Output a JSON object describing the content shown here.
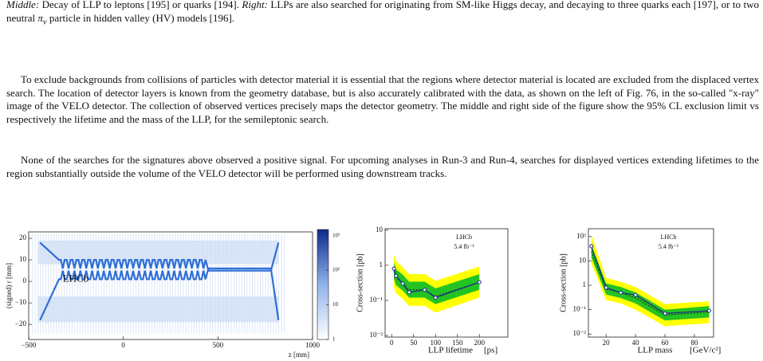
{
  "document": {
    "caption": [
      {
        "text": "Middle:",
        "italic": true
      },
      {
        "text": " Decay of LLP to leptons [195] or quarks [194]. ",
        "italic": false
      },
      {
        "text": "Right:",
        "italic": true
      },
      {
        "text": " LLPs are also searched for originating from SM-like Higgs decay, and decaying to three quarks each [197], or to two neutral ",
        "italic": false
      },
      {
        "text": "π",
        "italic": true
      },
      {
        "text": "v",
        "italic": true,
        "sub": true
      },
      {
        "text": " particle in hidden valley (HV) models [196].",
        "italic": false
      }
    ],
    "paragraphs": [
      "To exclude backgrounds from collisions of particles with detector material it is essential that the regions where detector material is located are excluded from the displaced vertex search. The location of detector layers is known from the geometry database, but is also accurately calibrated with the data, as shown on the left of Fig. 76, in the so-called \"x-ray\" image of the VELO detector. The collection of observed vertices precisely maps the detector geometry. The middle and right side of the figure show the 95% CL exclusion limit vs respectively the lifetime and the mass of the LLP, for the semileptonic search.",
      "None of the searches for the signatures above observed a positive signal. For upcoming analyses in Run-3 and Run-4, searches for displayed vertices extending lifetimes to the region substantially outside the volume of the VELO detector will be performed using downstream tracks."
    ]
  },
  "chart_data": [
    {
      "type": "heatmap",
      "annotation": "LHCb",
      "xlabel": "z [mm]",
      "ylabel": "(signed) r [mm]",
      "xlim": [
        -500,
        1000
      ],
      "ylim": [
        -27,
        23
      ],
      "xticks": [
        {
          "value": -500,
          "label": "−500"
        },
        0,
        500,
        1000
      ],
      "yticks": [
        20,
        10,
        0,
        {
          "value": -10,
          "label": "−10"
        },
        {
          "value": -20,
          "label": "−20"
        }
      ],
      "color": "#2f6fd6",
      "colorbar": {
        "log": true,
        "lim": [
          1,
          1500
        ],
        "ticks": [
          {
            "value": 1000,
            "label": "10³"
          },
          {
            "value": 100,
            "label": "10²"
          },
          10,
          1
        ]
      }
    },
    {
      "type": "limit",
      "annotation": [
        "LHCb",
        "5.4 fb⁻¹"
      ],
      "xlabel": "LLP lifetime",
      "xunit": "[ps]",
      "ylabel": "Cross-section [pb]",
      "log_y": true,
      "xlim": [
        -15,
        265
      ],
      "ylim": [
        0.009,
        11
      ],
      "xticks": [
        0,
        50,
        100,
        150,
        200
      ],
      "yticks": [
        10,
        1,
        {
          "value": 0.1,
          "label": "10⁻¹"
        },
        {
          "value": 0.01,
          "label": "10⁻²"
        }
      ],
      "x": [
        5,
        10,
        25,
        40,
        75,
        100,
        200
      ],
      "observed": {
        "values": [
          0.8,
          0.5,
          0.3,
          0.17,
          0.2,
          0.12,
          0.33
        ],
        "color": "#1c2f8a"
      },
      "expected": {
        "values": [
          0.7,
          0.45,
          0.32,
          0.2,
          0.2,
          0.13,
          0.33
        ],
        "color": "#222222"
      },
      "band_1sigma": {
        "low": [
          0.42,
          0.27,
          0.19,
          0.12,
          0.12,
          0.078,
          0.2
        ],
        "high": [
          1.2,
          0.77,
          0.54,
          0.34,
          0.34,
          0.22,
          0.56
        ],
        "color": "#22c322"
      },
      "band_2sigma": {
        "low": [
          0.25,
          0.16,
          0.11,
          0.07,
          0.07,
          0.045,
          0.12
        ],
        "high": [
          2.0,
          1.3,
          0.9,
          0.56,
          0.56,
          0.36,
          0.92
        ],
        "color": "#ffff00"
      }
    },
    {
      "type": "limit",
      "annotation": [
        "LHCb",
        "5.4 fb⁻¹"
      ],
      "xlabel": "LLP mass",
      "xunit": "[GeV/c²]",
      "ylabel": "Cross-section [pb]",
      "log_y": true,
      "xlim": [
        8,
        93
      ],
      "ylim": [
        0.0075,
        210
      ],
      "xticks": [
        20,
        40,
        60,
        80
      ],
      "yticks": [
        {
          "value": 100,
          "label": "10²"
        },
        10,
        1,
        {
          "value": 0.1,
          "label": "10⁻¹"
        },
        {
          "value": 0.01,
          "label": "10⁻²"
        }
      ],
      "x": [
        10,
        20,
        30,
        40,
        60,
        90
      ],
      "observed": {
        "values": [
          40,
          0.8,
          0.5,
          0.4,
          0.07,
          0.09
        ],
        "color": "#1c2f8a"
      },
      "expected": {
        "values": [
          25,
          0.7,
          0.5,
          0.3,
          0.06,
          0.08
        ],
        "color": "#222222"
      },
      "band_1sigma": {
        "low": [
          14,
          0.42,
          0.3,
          0.18,
          0.036,
          0.048
        ],
        "high": [
          45,
          1.2,
          0.85,
          0.51,
          0.1,
          0.14
        ],
        "color": "#22c322"
      },
      "band_2sigma": {
        "low": [
          8,
          0.25,
          0.18,
          0.1,
          0.021,
          0.028
        ],
        "high": [
          120,
          2.0,
          1.4,
          0.85,
          0.17,
          0.22
        ],
        "color": "#ffff00"
      }
    }
  ]
}
